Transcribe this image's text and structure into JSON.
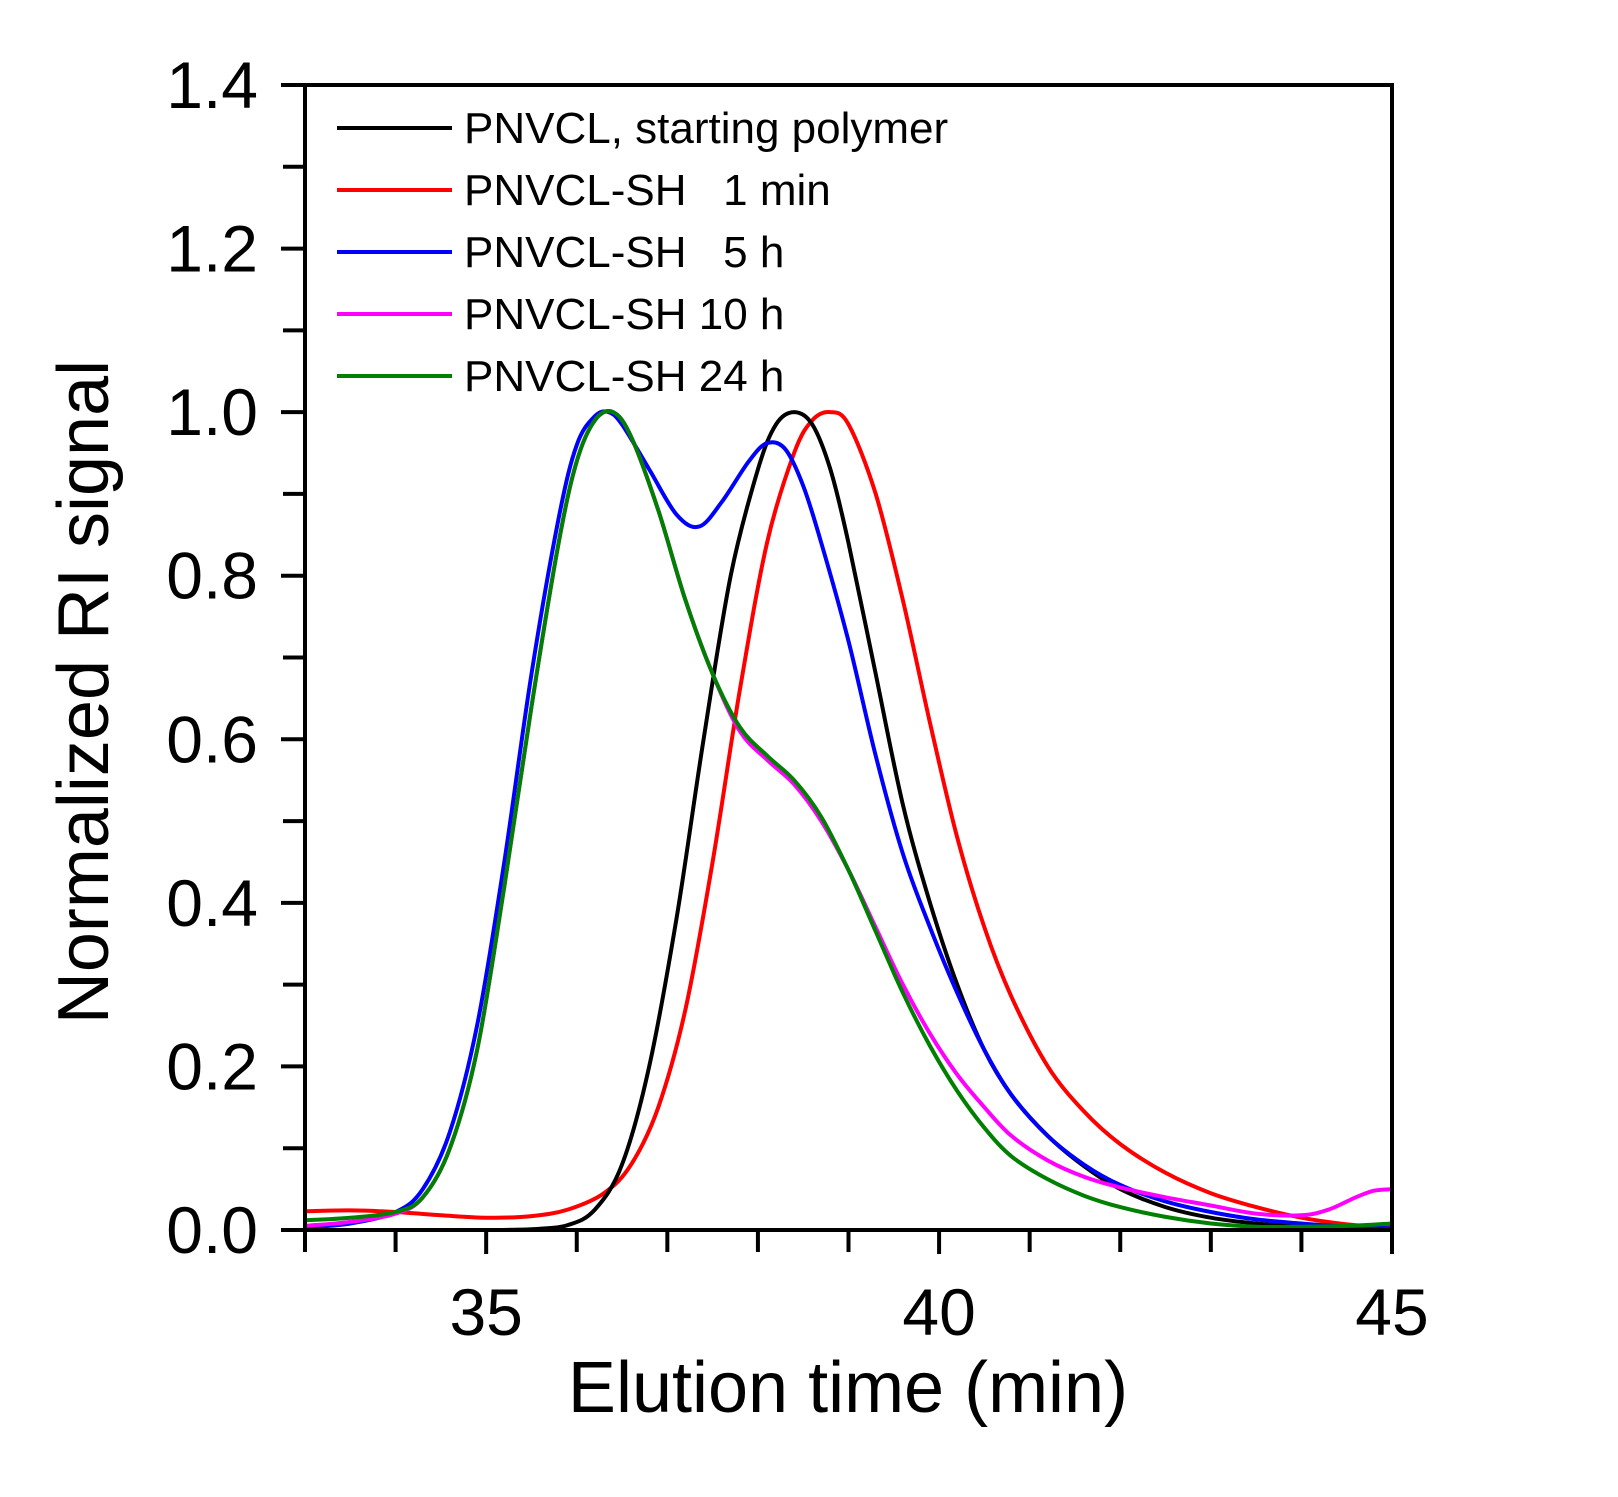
{
  "chart_data": {
    "type": "line",
    "title": "",
    "xlabel": "Elution time (min)",
    "ylabel": "Normalized RI signal",
    "xlim": [
      33,
      45
    ],
    "ylim": [
      0,
      1.4
    ],
    "x_ticks": [
      "35",
      "40",
      "45"
    ],
    "y_ticks": [
      "0.0",
      "0.2",
      "0.4",
      "0.6",
      "0.8",
      "1.0",
      "1.2",
      "1.4"
    ],
    "grid": false,
    "legend_position": "top-left",
    "series": [
      {
        "name": "PNVCL, starting polymer",
        "color": "#000000",
        "points": [
          [
            33.0,
            0.0
          ],
          [
            34.0,
            0.0
          ],
          [
            35.0,
            0.0
          ],
          [
            35.5,
            0.001
          ],
          [
            35.9,
            0.006
          ],
          [
            36.2,
            0.025
          ],
          [
            36.5,
            0.08
          ],
          [
            36.8,
            0.2
          ],
          [
            37.1,
            0.38
          ],
          [
            37.4,
            0.6
          ],
          [
            37.7,
            0.8
          ],
          [
            38.0,
            0.93
          ],
          [
            38.2,
            0.985
          ],
          [
            38.4,
            1.0
          ],
          [
            38.6,
            0.985
          ],
          [
            38.8,
            0.93
          ],
          [
            39.0,
            0.84
          ],
          [
            39.3,
            0.68
          ],
          [
            39.6,
            0.52
          ],
          [
            39.9,
            0.4
          ],
          [
            40.2,
            0.3
          ],
          [
            40.5,
            0.22
          ],
          [
            40.8,
            0.165
          ],
          [
            41.2,
            0.115
          ],
          [
            41.6,
            0.078
          ],
          [
            42.0,
            0.05
          ],
          [
            42.5,
            0.028
          ],
          [
            43.0,
            0.015
          ],
          [
            43.5,
            0.008
          ],
          [
            44.0,
            0.004
          ],
          [
            44.5,
            0.002
          ],
          [
            45.0,
            0.001
          ]
        ]
      },
      {
        "name": "PNVCL-SH   1 min",
        "color": "#ff0000",
        "points": [
          [
            33.0,
            0.023
          ],
          [
            33.5,
            0.024
          ],
          [
            34.0,
            0.022
          ],
          [
            34.5,
            0.018
          ],
          [
            35.0,
            0.015
          ],
          [
            35.5,
            0.017
          ],
          [
            35.9,
            0.025
          ],
          [
            36.3,
            0.045
          ],
          [
            36.6,
            0.08
          ],
          [
            36.9,
            0.15
          ],
          [
            37.2,
            0.27
          ],
          [
            37.5,
            0.45
          ],
          [
            37.8,
            0.66
          ],
          [
            38.1,
            0.84
          ],
          [
            38.4,
            0.95
          ],
          [
            38.6,
            0.99
          ],
          [
            38.8,
            1.0
          ],
          [
            39.0,
            0.985
          ],
          [
            39.3,
            0.9
          ],
          [
            39.6,
            0.77
          ],
          [
            39.9,
            0.62
          ],
          [
            40.2,
            0.48
          ],
          [
            40.5,
            0.37
          ],
          [
            40.8,
            0.285
          ],
          [
            41.2,
            0.2
          ],
          [
            41.6,
            0.145
          ],
          [
            42.0,
            0.105
          ],
          [
            42.5,
            0.07
          ],
          [
            43.0,
            0.045
          ],
          [
            43.5,
            0.028
          ],
          [
            44.0,
            0.015
          ],
          [
            44.5,
            0.007
          ],
          [
            45.0,
            0.003
          ]
        ]
      },
      {
        "name": "PNVCL-SH   5 h",
        "color": "#0000ff",
        "points": [
          [
            33.0,
            0.003
          ],
          [
            33.5,
            0.008
          ],
          [
            34.0,
            0.022
          ],
          [
            34.3,
            0.05
          ],
          [
            34.6,
            0.12
          ],
          [
            34.9,
            0.25
          ],
          [
            35.2,
            0.45
          ],
          [
            35.5,
            0.68
          ],
          [
            35.8,
            0.87
          ],
          [
            36.0,
            0.96
          ],
          [
            36.2,
            0.995
          ],
          [
            36.35,
            1.0
          ],
          [
            36.5,
            0.985
          ],
          [
            36.8,
            0.93
          ],
          [
            37.1,
            0.875
          ],
          [
            37.35,
            0.86
          ],
          [
            37.6,
            0.89
          ],
          [
            37.9,
            0.94
          ],
          [
            38.1,
            0.962
          ],
          [
            38.3,
            0.955
          ],
          [
            38.5,
            0.91
          ],
          [
            38.7,
            0.84
          ],
          [
            39.0,
            0.72
          ],
          [
            39.3,
            0.58
          ],
          [
            39.6,
            0.46
          ],
          [
            39.9,
            0.37
          ],
          [
            40.2,
            0.29
          ],
          [
            40.5,
            0.22
          ],
          [
            40.8,
            0.165
          ],
          [
            41.2,
            0.115
          ],
          [
            41.6,
            0.08
          ],
          [
            42.0,
            0.055
          ],
          [
            42.5,
            0.035
          ],
          [
            43.0,
            0.022
          ],
          [
            43.5,
            0.013
          ],
          [
            44.0,
            0.008
          ],
          [
            44.5,
            0.004
          ],
          [
            45.0,
            0.002
          ]
        ]
      },
      {
        "name": "PNVCL-SH 10 h",
        "color": "#ff00ff",
        "points": [
          [
            33.0,
            0.005
          ],
          [
            33.5,
            0.01
          ],
          [
            34.0,
            0.02
          ],
          [
            34.3,
            0.04
          ],
          [
            34.6,
            0.1
          ],
          [
            34.9,
            0.22
          ],
          [
            35.2,
            0.42
          ],
          [
            35.5,
            0.64
          ],
          [
            35.8,
            0.84
          ],
          [
            36.0,
            0.94
          ],
          [
            36.2,
            0.99
          ],
          [
            36.4,
            1.0
          ],
          [
            36.6,
            0.97
          ],
          [
            36.9,
            0.88
          ],
          [
            37.2,
            0.77
          ],
          [
            37.5,
            0.68
          ],
          [
            37.8,
            0.61
          ],
          [
            38.1,
            0.575
          ],
          [
            38.4,
            0.545
          ],
          [
            38.7,
            0.5
          ],
          [
            39.0,
            0.44
          ],
          [
            39.3,
            0.37
          ],
          [
            39.6,
            0.3
          ],
          [
            39.9,
            0.24
          ],
          [
            40.2,
            0.19
          ],
          [
            40.5,
            0.15
          ],
          [
            40.8,
            0.115
          ],
          [
            41.2,
            0.085
          ],
          [
            41.6,
            0.065
          ],
          [
            42.0,
            0.052
          ],
          [
            42.5,
            0.04
          ],
          [
            43.0,
            0.03
          ],
          [
            43.5,
            0.02
          ],
          [
            44.0,
            0.018
          ],
          [
            44.3,
            0.025
          ],
          [
            44.6,
            0.04
          ],
          [
            44.8,
            0.048
          ],
          [
            45.0,
            0.05
          ]
        ]
      },
      {
        "name": "PNVCL-SH 24 h",
        "color": "#008000",
        "points": [
          [
            33.0,
            0.012
          ],
          [
            33.5,
            0.015
          ],
          [
            34.0,
            0.022
          ],
          [
            34.3,
            0.04
          ],
          [
            34.6,
            0.1
          ],
          [
            34.9,
            0.22
          ],
          [
            35.2,
            0.42
          ],
          [
            35.5,
            0.64
          ],
          [
            35.8,
            0.84
          ],
          [
            36.0,
            0.94
          ],
          [
            36.2,
            0.99
          ],
          [
            36.4,
            1.0
          ],
          [
            36.6,
            0.97
          ],
          [
            36.9,
            0.88
          ],
          [
            37.2,
            0.77
          ],
          [
            37.5,
            0.68
          ],
          [
            37.8,
            0.615
          ],
          [
            38.1,
            0.58
          ],
          [
            38.4,
            0.55
          ],
          [
            38.7,
            0.505
          ],
          [
            39.0,
            0.44
          ],
          [
            39.3,
            0.365
          ],
          [
            39.6,
            0.29
          ],
          [
            39.9,
            0.225
          ],
          [
            40.2,
            0.17
          ],
          [
            40.5,
            0.125
          ],
          [
            40.8,
            0.09
          ],
          [
            41.2,
            0.062
          ],
          [
            41.6,
            0.042
          ],
          [
            42.0,
            0.028
          ],
          [
            42.5,
            0.016
          ],
          [
            43.0,
            0.008
          ],
          [
            43.5,
            0.004
          ],
          [
            44.0,
            0.004
          ],
          [
            44.5,
            0.005
          ],
          [
            45.0,
            0.008
          ]
        ]
      }
    ]
  }
}
